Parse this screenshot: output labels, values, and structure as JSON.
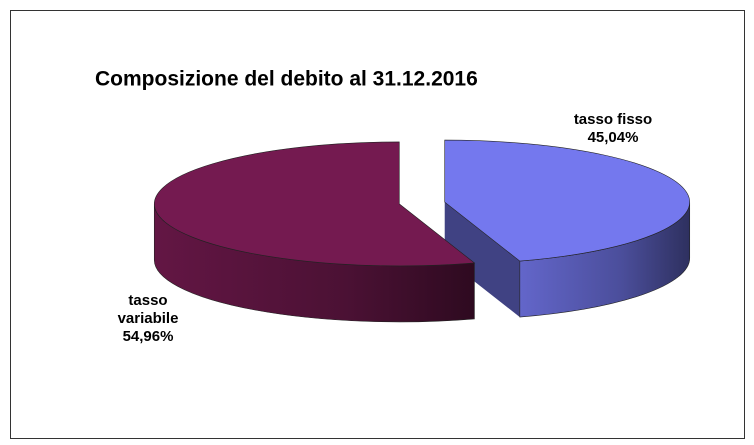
{
  "chart_data": {
    "type": "pie3d",
    "title": "Composizione del debito al 31.12.2016",
    "categories": [
      "tasso fisso",
      "tasso variabile"
    ],
    "values": [
      45.04,
      54.96
    ],
    "value_labels": [
      "45,04%",
      "54,96%"
    ],
    "colors": [
      "#7478ee",
      "#741a50"
    ]
  }
}
